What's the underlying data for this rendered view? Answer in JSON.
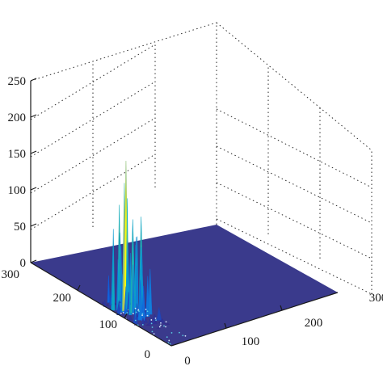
{
  "chart_data": {
    "type": "surface",
    "title": "",
    "xlabel": "",
    "ylabel": "",
    "zlabel": "",
    "xlim": [
      0,
      300
    ],
    "ylim": [
      0,
      300
    ],
    "zlim": [
      0,
      250
    ],
    "x_ticks": [
      "0",
      "100",
      "200",
      "300"
    ],
    "y_ticks": [
      "0",
      "100",
      "200",
      "300"
    ],
    "z_ticks": [
      "0",
      "50",
      "100",
      "150",
      "200",
      "250"
    ],
    "grid": true,
    "colormap": "parula",
    "floor_color": "#3a3a8c",
    "floor_value": 0,
    "peak_region": {
      "x": [
        0,
        40
      ],
      "y": [
        50,
        150
      ]
    },
    "peak_max_z": 205
  }
}
